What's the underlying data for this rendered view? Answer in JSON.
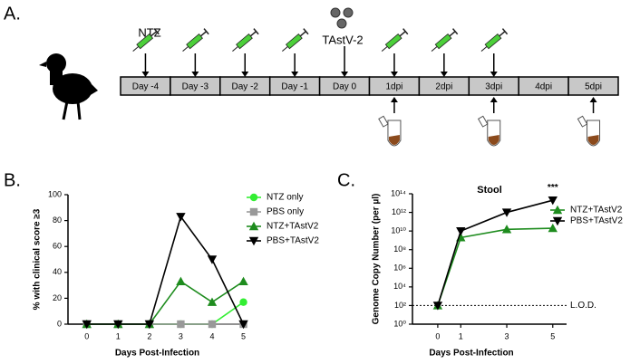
{
  "panel_a": {
    "panel_label": "A.",
    "treatment": "NTZ",
    "infection": "TAstV-2",
    "timeline": [
      "Day -4",
      "Day -3",
      "Day -2",
      "Day -1",
      "Day 0",
      "1dpi",
      "2dpi",
      "3dpi",
      "4dpi",
      "5dpi"
    ]
  },
  "chart_data": [
    {
      "type": "line",
      "panel_label": "B.",
      "x_label": "Days Post-Infection",
      "y_label": "% with clinical score ≥3",
      "x": [
        0,
        1,
        2,
        3,
        4,
        5
      ],
      "xlim": [
        -0.6,
        5.1
      ],
      "xticks": [
        0,
        1,
        2,
        3,
        4,
        5
      ],
      "ylim": [
        0,
        100
      ],
      "yticks": [
        0,
        20,
        40,
        60,
        80,
        100
      ],
      "series": [
        {
          "name": "NTZ only",
          "color": "#33ee33",
          "marker": "circle",
          "values": [
            0,
            0,
            0,
            0,
            0,
            17
          ]
        },
        {
          "name": "PBS only",
          "color": "#999999",
          "marker": "square",
          "values": [
            0,
            0,
            0,
            0,
            0,
            0
          ]
        },
        {
          "name": "NTZ+TAstV2",
          "color": "#1e8c1e",
          "marker": "triangle",
          "values": [
            0,
            0,
            0,
            33,
            17,
            33
          ]
        },
        {
          "name": "PBS+TAstV2",
          "color": "#000000",
          "marker": "triangle-down",
          "values": [
            0,
            0,
            0,
            83,
            50,
            0
          ]
        }
      ]
    },
    {
      "type": "line",
      "panel_label": "C.",
      "title": "Stool",
      "x_label": "Days Post-Infection",
      "y_label": "Genome Copy Number (per µl)",
      "y_scale": "log",
      "x": [
        0,
        1,
        3,
        5
      ],
      "xlim": [
        -1.1,
        5.6
      ],
      "xticks": [
        0,
        1,
        3,
        5
      ],
      "ylim": [
        1,
        100000000000000
      ],
      "yticks": [
        {
          "value": 1,
          "label": "10⁰"
        },
        {
          "value": 100,
          "label": "10²"
        },
        {
          "value": 10000,
          "label": "10⁴"
        },
        {
          "value": 1000000,
          "label": "10⁶"
        },
        {
          "value": 100000000,
          "label": "10⁸"
        },
        {
          "value": 10000000000,
          "label": "10¹⁰"
        },
        {
          "value": 1000000000000,
          "label": "10¹²"
        },
        {
          "value": 100000000000000,
          "label": "10¹⁴"
        }
      ],
      "lod": {
        "value": 100,
        "label": "L.O.D."
      },
      "annotation": {
        "x": 5,
        "text": "***"
      },
      "series": [
        {
          "name": "NTZ+TAstV2",
          "color": "#1e8c1e",
          "marker": "triangle",
          "values": [
            100,
            2000000000,
            15000000000,
            20000000000
          ]
        },
        {
          "name": "PBS+TAstV2",
          "color": "#000000",
          "marker": "triangle-down",
          "values": [
            100,
            10000000000,
            1000000000000,
            20000000000000
          ]
        }
      ]
    }
  ]
}
